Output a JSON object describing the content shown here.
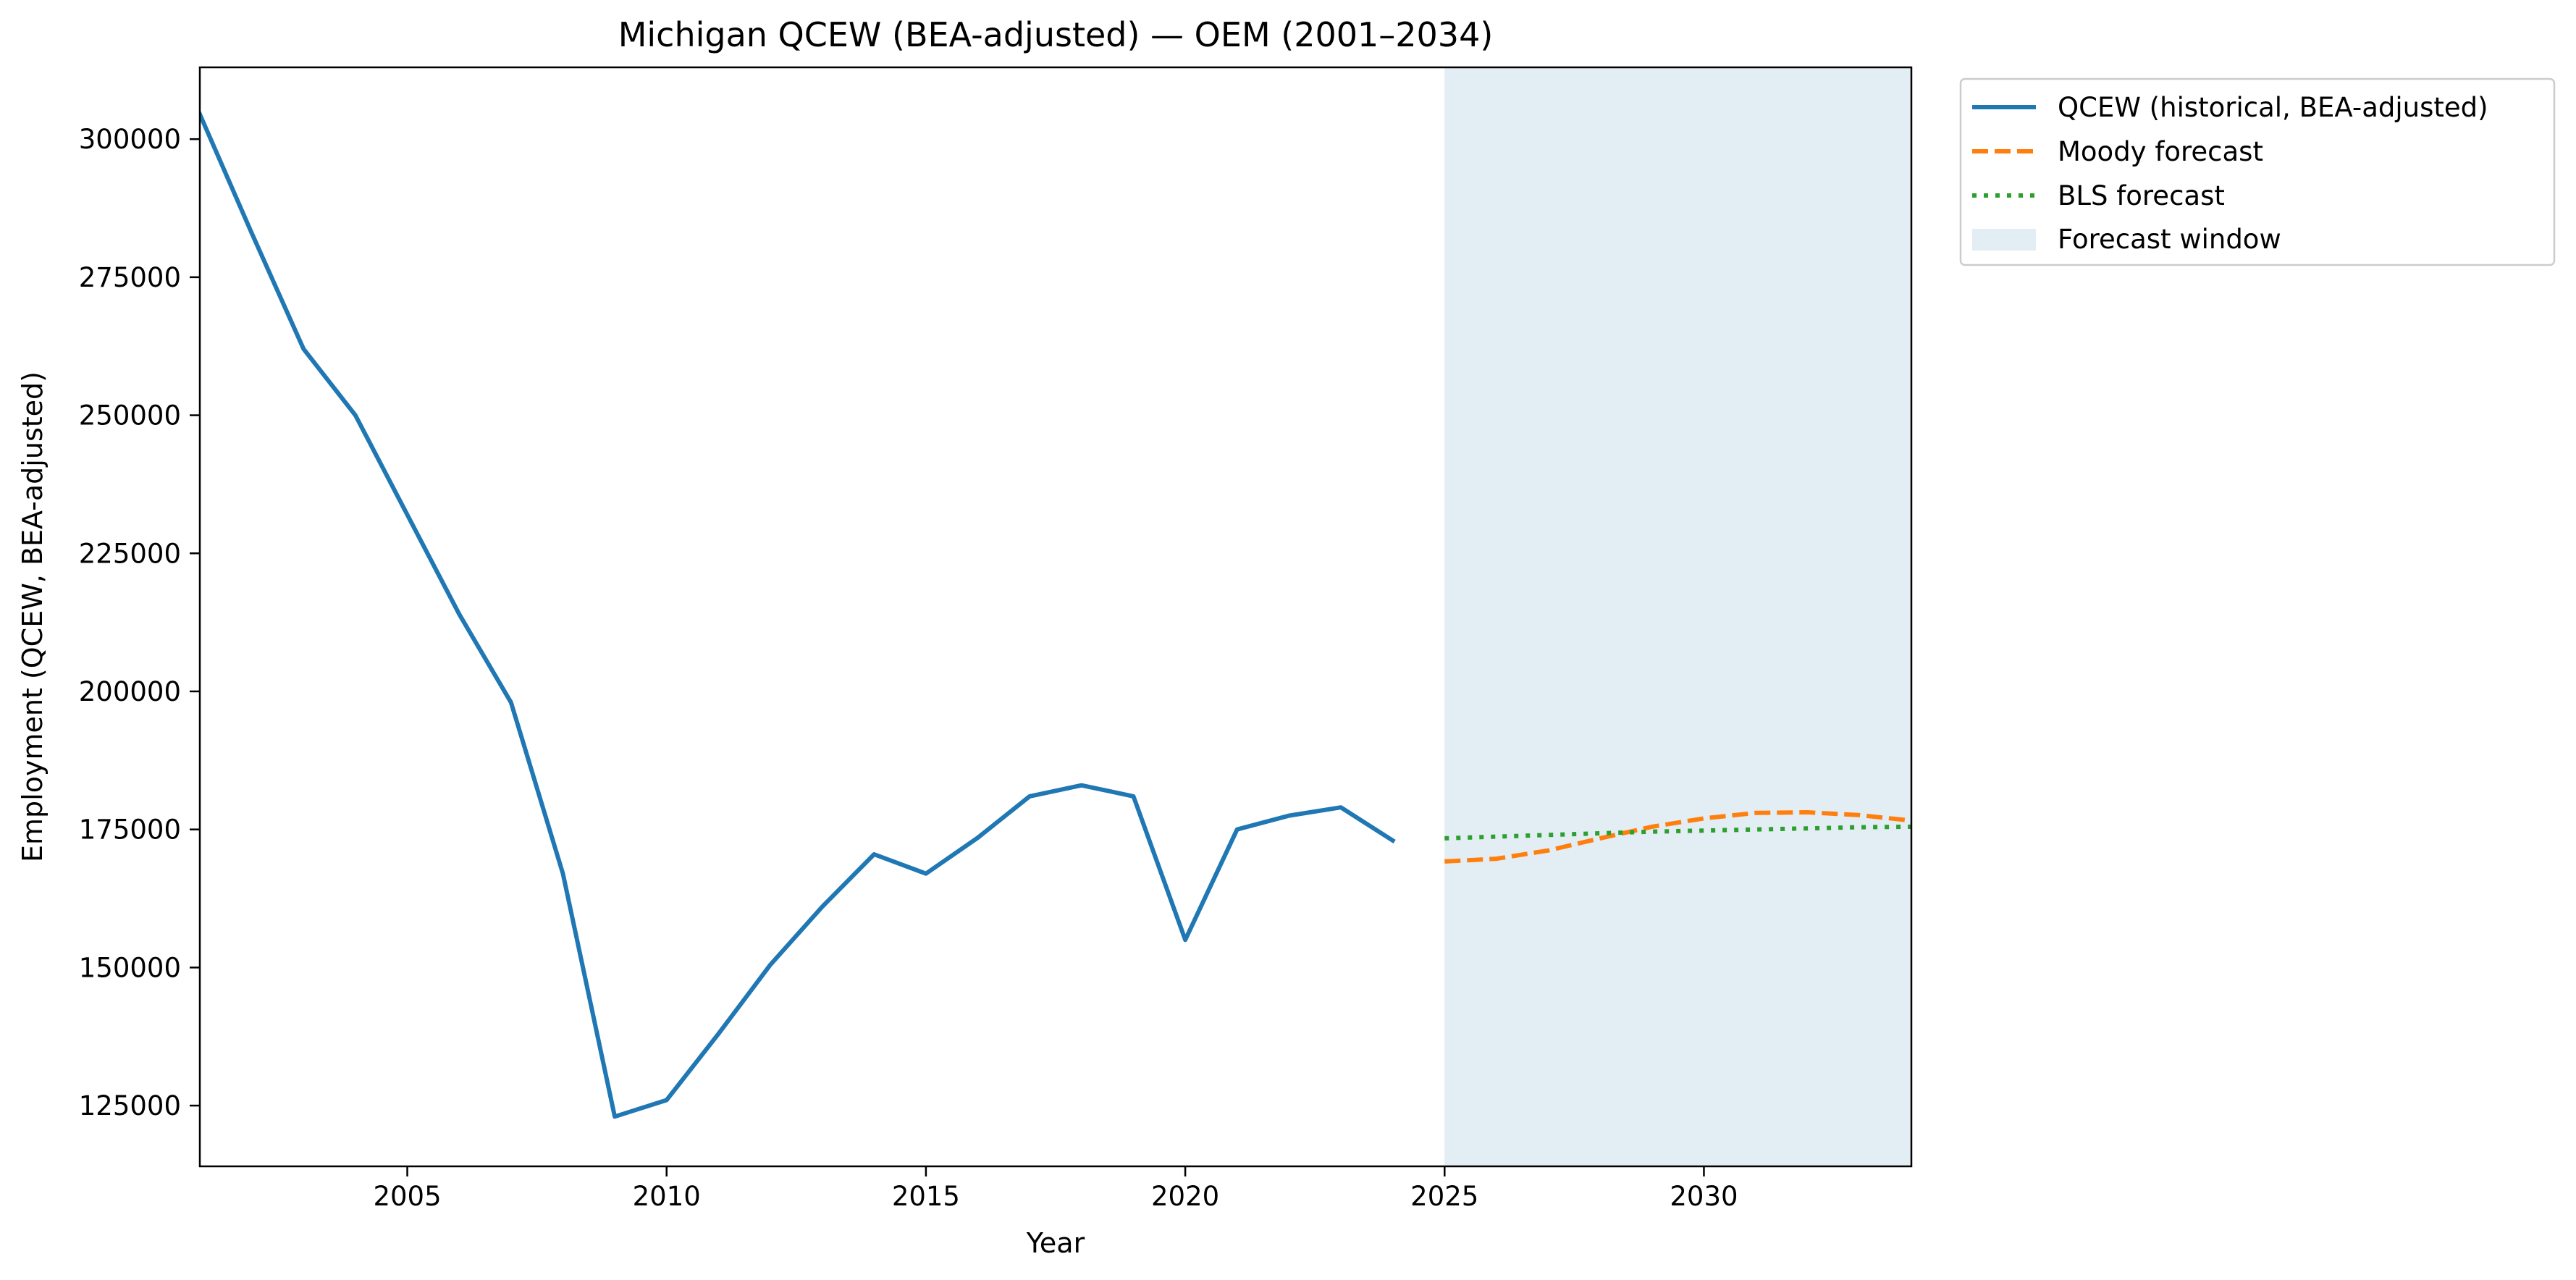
{
  "chart_data": {
    "type": "line",
    "title": "Michigan QCEW (BEA-adjusted) — OEM (2001–2034)",
    "xlabel": "Year",
    "ylabel": "Employment (QCEW, BEA-adjusted)",
    "xlim": [
      2001,
      2034
    ],
    "ylim": [
      114000,
      313000
    ],
    "x_ticks": [
      2005,
      2010,
      2015,
      2020,
      2025,
      2030
    ],
    "y_ticks": [
      125000,
      150000,
      175000,
      200000,
      225000,
      250000,
      275000,
      300000
    ],
    "grid": false,
    "legend_position": "outside-upper-right",
    "forecast_window": {
      "label": "Forecast window",
      "start": 2025,
      "end": 2034,
      "color": "#e2edf4"
    },
    "series": [
      {
        "name": "QCEW (historical, BEA-adjusted)",
        "style": "solid",
        "color": "#1f77b4",
        "x": [
          2001,
          2002,
          2003,
          2004,
          2005,
          2006,
          2007,
          2008,
          2009,
          2010,
          2011,
          2012,
          2013,
          2014,
          2015,
          2016,
          2017,
          2018,
          2019,
          2020,
          2021,
          2022,
          2023,
          2024
        ],
        "y": [
          304500,
          283000,
          262000,
          250000,
          232000,
          214000,
          198000,
          167000,
          123000,
          126000,
          138000,
          150500,
          161000,
          170500,
          167000,
          173500,
          181000,
          183000,
          181000,
          155000,
          175000,
          177500,
          179000,
          173000
        ]
      },
      {
        "name": "Moody forecast",
        "style": "dashed",
        "color": "#ff7f0e",
        "x": [
          2025,
          2026,
          2027,
          2028,
          2029,
          2030,
          2031,
          2032,
          2033,
          2034
        ],
        "y": [
          169200,
          169700,
          171200,
          173400,
          175500,
          177000,
          178000,
          178100,
          177600,
          176600
        ]
      },
      {
        "name": "BLS forecast",
        "style": "dotted",
        "color": "#2ca02c",
        "x": [
          2025,
          2026,
          2027,
          2028,
          2029,
          2030,
          2031,
          2032,
          2033,
          2034
        ],
        "y": [
          173400,
          173700,
          174000,
          174300,
          174600,
          174800,
          175000,
          175200,
          175400,
          175500
        ]
      }
    ]
  }
}
